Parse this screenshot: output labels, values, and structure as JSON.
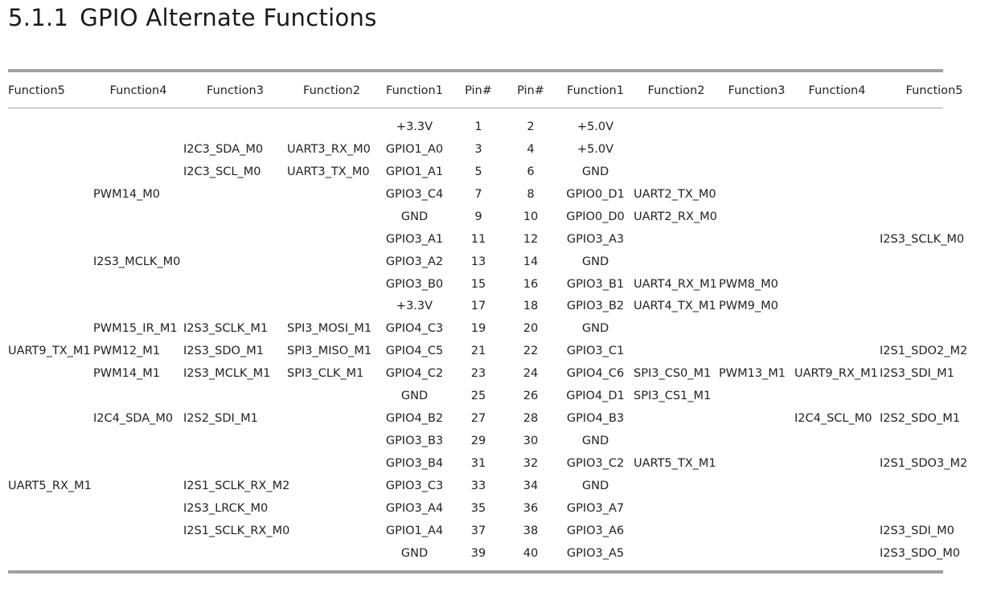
{
  "section": {
    "number": "5.1.1",
    "title": "GPIO Alternate Functions"
  },
  "table": {
    "headers": [
      "Function5",
      "Function4",
      "Function3",
      "Function2",
      "Function1",
      "Pin#",
      "Pin#",
      "Function1",
      "Function2",
      "Function3",
      "Function4",
      "Function5"
    ],
    "rows": [
      [
        "",
        "",
        "",
        "",
        "+3.3V",
        "1",
        "2",
        "+5.0V",
        "",
        "",
        "",
        ""
      ],
      [
        "",
        "",
        "I2C3_SDA_M0",
        "UART3_RX_M0",
        "GPIO1_A0",
        "3",
        "4",
        "+5.0V",
        "",
        "",
        "",
        ""
      ],
      [
        "",
        "",
        "I2C3_SCL_M0",
        "UART3_TX_M0",
        "GPIO1_A1",
        "5",
        "6",
        "GND",
        "",
        "",
        "",
        ""
      ],
      [
        "",
        "PWM14_M0",
        "",
        "",
        "GPIO3_C4",
        "7",
        "8",
        "GPIO0_D1",
        "UART2_TX_M0",
        "",
        "",
        ""
      ],
      [
        "",
        "",
        "",
        "",
        "GND",
        "9",
        "10",
        "GPIO0_D0",
        "UART2_RX_M0",
        "",
        "",
        ""
      ],
      [
        "",
        "",
        "",
        "",
        "GPIO3_A1",
        "11",
        "12",
        "GPIO3_A3",
        "",
        "",
        "",
        "I2S3_SCLK_M0"
      ],
      [
        "",
        "I2S3_MCLK_M0",
        "",
        "",
        "GPIO3_A2",
        "13",
        "14",
        "GND",
        "",
        "",
        "",
        ""
      ],
      [
        "",
        "",
        "",
        "",
        "GPIO3_B0",
        "15",
        "16",
        "GPIO3_B1",
        "UART4_RX_M1",
        "PWM8_M0",
        "",
        ""
      ],
      [
        "",
        "",
        "",
        "",
        "+3.3V",
        "17",
        "18",
        "GPIO3_B2",
        "UART4_TX_M1",
        "PWM9_M0",
        "",
        ""
      ],
      [
        "",
        "PWM15_IR_M1",
        "I2S3_SCLK_M1",
        "SPI3_MOSI_M1",
        "GPIO4_C3",
        "19",
        "20",
        "GND",
        "",
        "",
        "",
        ""
      ],
      [
        "UART9_TX_M1",
        "PWM12_M1",
        "I2S3_SDO_M1",
        "SPI3_MISO_M1",
        "GPIO4_C5",
        "21",
        "22",
        "GPIO3_C1",
        "",
        "",
        "",
        "I2S1_SDO2_M2"
      ],
      [
        "",
        "PWM14_M1",
        "I2S3_MCLK_M1",
        "SPI3_CLK_M1",
        "GPIO4_C2",
        "23",
        "24",
        "GPIO4_C6",
        "SPI3_CS0_M1",
        "PWM13_M1",
        "UART9_RX_M1",
        "I2S3_SDI_M1"
      ],
      [
        "",
        "",
        "",
        "",
        "GND",
        "25",
        "26",
        "GPIO4_D1",
        "SPI3_CS1_M1",
        "",
        "",
        ""
      ],
      [
        "",
        "I2C4_SDA_M0",
        "I2S2_SDI_M1",
        "",
        "GPIO4_B2",
        "27",
        "28",
        "GPIO4_B3",
        "",
        "",
        "I2C4_SCL_M0",
        "I2S2_SDO_M1"
      ],
      [
        "",
        "",
        "",
        "",
        "GPIO3_B3",
        "29",
        "30",
        "GND",
        "",
        "",
        "",
        ""
      ],
      [
        "",
        "",
        "",
        "",
        "GPIO3_B4",
        "31",
        "32",
        "GPIO3_C2",
        "UART5_TX_M1",
        "",
        "",
        "I2S1_SDO3_M2"
      ],
      [
        "UART5_RX_M1",
        "",
        "I2S1_SCLK_RX_M2",
        "",
        "GPIO3_C3",
        "33",
        "34",
        "GND",
        "",
        "",
        "",
        ""
      ],
      [
        "",
        "",
        "I2S3_LRCK_M0",
        "",
        "GPIO3_A4",
        "35",
        "36",
        "GPIO3_A7",
        "",
        "",
        "",
        ""
      ],
      [
        "",
        "",
        "I2S1_SCLK_RX_M0",
        "",
        "GPIO1_A4",
        "37",
        "38",
        "GPIO3_A6",
        "",
        "",
        "",
        "I2S3_SDI_M0"
      ],
      [
        "",
        "",
        "",
        "",
        "GND",
        "39",
        "40",
        "GPIO3_A5",
        "",
        "",
        "",
        "I2S3_SDO_M0"
      ]
    ]
  }
}
